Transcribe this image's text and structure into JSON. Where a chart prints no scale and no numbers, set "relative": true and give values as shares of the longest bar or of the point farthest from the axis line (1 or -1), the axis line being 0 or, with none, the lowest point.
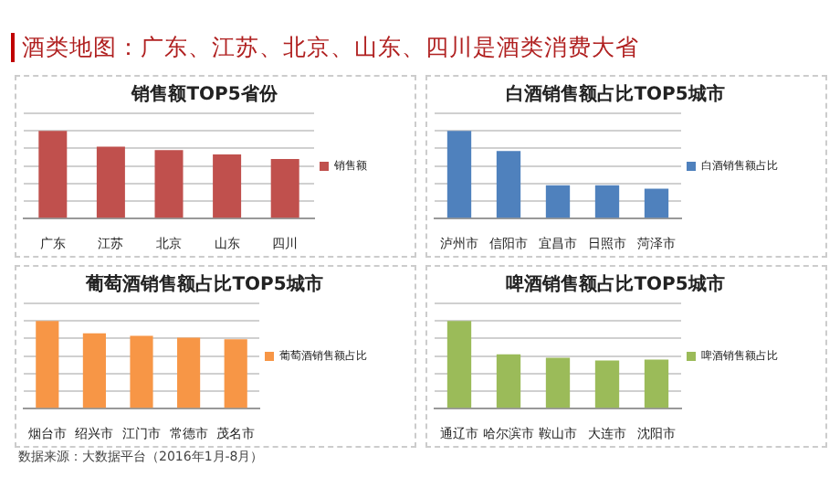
{
  "chart_data": [
    {
      "type": "other",
      "title": "酒类地图：广东、江苏、北京、山东、四川是酒类消费大省",
      "annotations": [
        "数据来源：大数据平台（2016年1月-8月）"
      ]
    },
    {
      "type": "bar",
      "title": "销售额TOP5省份",
      "categories": [
        "广东",
        "江苏",
        "北京",
        "山东",
        "四川"
      ],
      "relative": true,
      "grid": "y",
      "legend": "right",
      "series": [
        {
          "name": "销售额",
          "color": "#c0504d",
          "values": [
            1,
            0.82,
            0.78,
            0.73,
            0.68
          ]
        }
      ]
    },
    {
      "type": "bar",
      "title": "白酒销售额占比TOP5城市",
      "categories": [
        "泸州市",
        "信阳市",
        "宜昌市",
        "日照市",
        "菏泽市"
      ],
      "relative": true,
      "grid": "y",
      "legend": "right",
      "series": [
        {
          "name": "白酒销售额占比",
          "color": "#4f81bd",
          "values": [
            1,
            0.77,
            0.38,
            0.38,
            0.34
          ]
        }
      ]
    },
    {
      "type": "bar",
      "title": "葡萄酒销售额占比TOP5城市",
      "categories": [
        "烟台市",
        "绍兴市",
        "江门市",
        "常德市",
        "茂名市"
      ],
      "relative": true,
      "grid": "y",
      "legend": "right",
      "series": [
        {
          "name": "葡萄酒销售额占比",
          "color": "#f79646",
          "values": [
            1,
            0.86,
            0.83,
            0.81,
            0.79
          ]
        }
      ]
    },
    {
      "type": "bar",
      "title": "啤酒销售额占比TOP5城市",
      "categories": [
        "通辽市",
        "哈尔滨市",
        "鞍山市",
        "大连市",
        "沈阳市"
      ],
      "relative": true,
      "grid": "y",
      "legend": "right",
      "series": [
        {
          "name": "啤酒销售额占比",
          "color": "#9bbb59",
          "values": [
            1,
            0.62,
            0.58,
            0.55,
            0.56
          ]
        }
      ]
    }
  ]
}
